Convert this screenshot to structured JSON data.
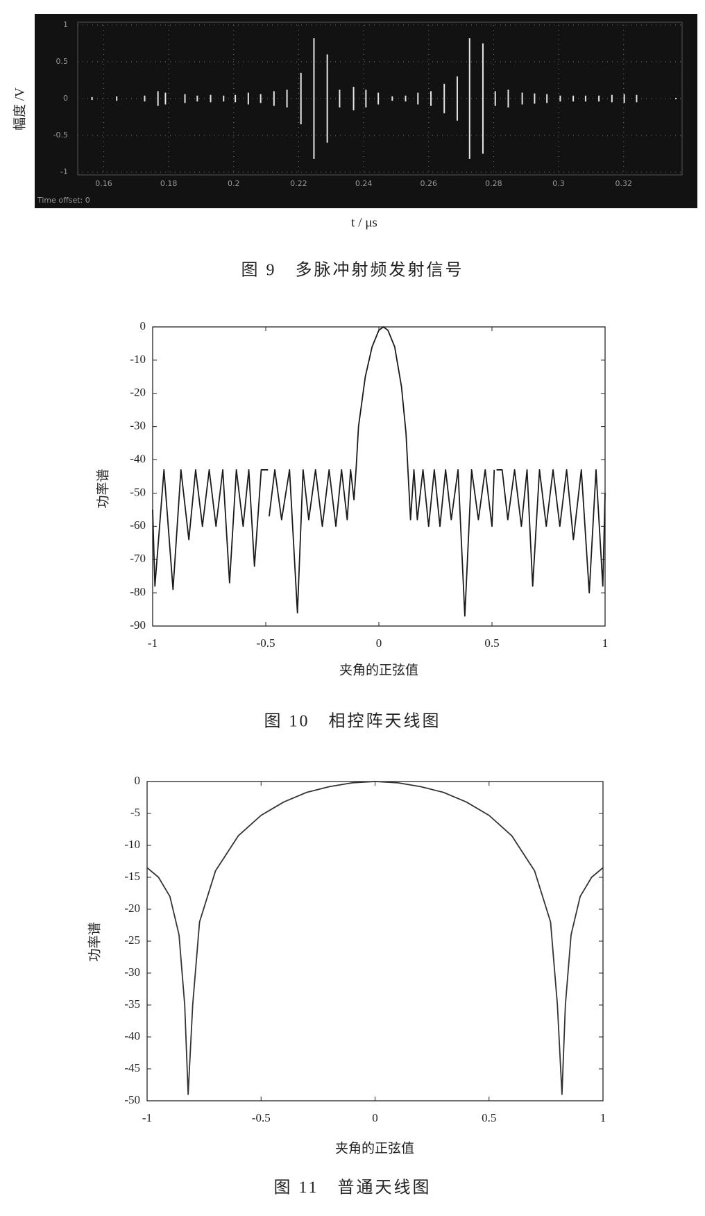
{
  "chart_data": [
    {
      "type": "stem",
      "caption": "图 9　多脉冲射频发射信号",
      "xlabel": "t / μs",
      "ylabel": "幅度 /V",
      "annotation": "Time offset:  0",
      "x": [
        0.1564,
        0.164,
        0.1726,
        0.1767,
        0.179,
        0.185,
        0.1888,
        0.1929,
        0.1969,
        0.2005,
        0.2045,
        0.2083,
        0.2124,
        0.2164,
        0.2207,
        0.2247,
        0.2288,
        0.2326,
        0.2369,
        0.2407,
        0.2445,
        0.2488,
        0.2529,
        0.2567,
        0.2607,
        0.2648,
        0.2688,
        0.2726,
        0.2767,
        0.2805,
        0.2845,
        0.2888,
        0.2926,
        0.2964,
        0.3005,
        0.3045,
        0.3083,
        0.3124,
        0.3164,
        0.3202,
        0.324,
        0.3361
      ],
      "values": [
        0.02,
        0.03,
        0.04,
        0.1,
        0.08,
        0.06,
        0.04,
        0.05,
        0.04,
        0.05,
        0.08,
        0.06,
        0.1,
        0.12,
        0.35,
        0.82,
        0.6,
        0.12,
        0.16,
        0.12,
        0.08,
        0.03,
        0.04,
        0.08,
        0.1,
        0.2,
        0.3,
        0.82,
        0.75,
        0.1,
        0.12,
        0.08,
        0.07,
        0.06,
        0.04,
        0.04,
        0.04,
        0.04,
        0.05,
        0.06,
        0.05,
        0.01
      ],
      "color": "#e6e6e6",
      "xlim": [
        0.152,
        0.338
      ],
      "ylim": [
        -1,
        1
      ],
      "xticks": [
        0.16,
        0.18,
        0.2,
        0.22,
        0.24,
        0.26,
        0.28,
        0.3,
        0.32
      ],
      "yticks": [
        1,
        0.5,
        0,
        -0.5,
        -1
      ],
      "grid": true
    },
    {
      "type": "line",
      "caption": "图 10　相控阵天线图",
      "xlabel": "夹角的正弦值",
      "ylabel": "功率谱",
      "x": [
        -1,
        -0.99,
        -0.95,
        -0.91,
        -0.875,
        -0.84,
        -0.81,
        -0.78,
        -0.75,
        -0.72,
        -0.69,
        -0.66,
        -0.63,
        -0.6,
        -0.575,
        -0.55,
        -0.52,
        -0.49,
        -0.487,
        -0.485,
        -0.46,
        -0.43,
        -0.395,
        -0.36,
        -0.335,
        -0.31,
        -0.28,
        -0.25,
        -0.22,
        -0.19,
        -0.165,
        -0.14,
        -0.125,
        -0.11,
        -0.1,
        -0.09,
        -0.06,
        -0.03,
        0,
        0.02,
        0.04,
        0.07,
        0.1,
        0.12,
        0.13,
        0.14,
        0.155,
        0.17,
        0.195,
        0.22,
        0.245,
        0.27,
        0.295,
        0.32,
        0.35,
        0.38,
        0.41,
        0.44,
        0.47,
        0.5,
        0.51,
        0.515,
        0.52,
        0.545,
        0.57,
        0.6,
        0.63,
        0.655,
        0.68,
        0.71,
        0.74,
        0.77,
        0.8,
        0.83,
        0.86,
        0.895,
        0.93,
        0.96,
        0.99,
        1
      ],
      "values": [
        -55,
        -78,
        -43,
        -79,
        -43,
        -64,
        -43,
        -60,
        -43,
        -60,
        -43,
        -77,
        -43,
        -60,
        -43,
        -72,
        -43,
        -43,
        null,
        -57,
        -43,
        -58,
        -43,
        -86,
        -43,
        -58,
        -43,
        -60,
        -43,
        -60,
        -43,
        -58,
        -43,
        -52,
        -42,
        -30,
        -15,
        -6,
        -1,
        0,
        -1,
        -6,
        -18,
        -32,
        -45,
        -58,
        -43,
        -58,
        -43,
        -60,
        -43,
        -60,
        -43,
        -58,
        -43,
        -87,
        -43,
        -58,
        -43,
        -60,
        -43,
        null,
        -43,
        -43,
        -58,
        -43,
        -60,
        -43,
        -78,
        -43,
        -60,
        -43,
        -60,
        -43,
        -64,
        -43,
        -80,
        -43,
        -78,
        -50
      ],
      "color": "#1a1a1a",
      "xlim": [
        -1,
        1
      ],
      "ylim": [
        -90,
        0
      ],
      "xticks": [
        -1,
        -0.5,
        0,
        0.5,
        1
      ],
      "yticks": [
        0,
        -10,
        -20,
        -30,
        -40,
        -50,
        -60,
        -70,
        -80,
        -90
      ],
      "grid": false
    },
    {
      "type": "line",
      "caption": "图 11　普通天线图",
      "xlabel": "夹角的正弦值",
      "ylabel": "功率谱",
      "x": [
        -1,
        -0.95,
        -0.9,
        -0.86,
        -0.835,
        -0.82,
        -0.8,
        -0.77,
        -0.7,
        -0.6,
        -0.5,
        -0.4,
        -0.3,
        -0.2,
        -0.1,
        0,
        0.1,
        0.2,
        0.3,
        0.4,
        0.5,
        0.6,
        0.7,
        0.77,
        0.8,
        0.82,
        0.835,
        0.86,
        0.9,
        0.95,
        1
      ],
      "values": [
        -13.5,
        -15,
        -18,
        -24,
        -35,
        -49,
        -35,
        -22,
        -14,
        -8.5,
        -5.3,
        -3.2,
        -1.7,
        -0.8,
        -0.2,
        0,
        -0.2,
        -0.8,
        -1.7,
        -3.2,
        -5.3,
        -8.5,
        -14,
        -22,
        -35,
        -49,
        -35,
        -24,
        -18,
        -15,
        -13.5
      ],
      "color": "#333333",
      "xlim": [
        -1,
        1
      ],
      "ylim": [
        -50,
        0
      ],
      "xticks": [
        -1,
        -0.5,
        0,
        0.5,
        1
      ],
      "yticks": [
        0,
        -5,
        -10,
        -15,
        -20,
        -25,
        -30,
        -35,
        -40,
        -45,
        -50
      ],
      "grid": false
    }
  ]
}
